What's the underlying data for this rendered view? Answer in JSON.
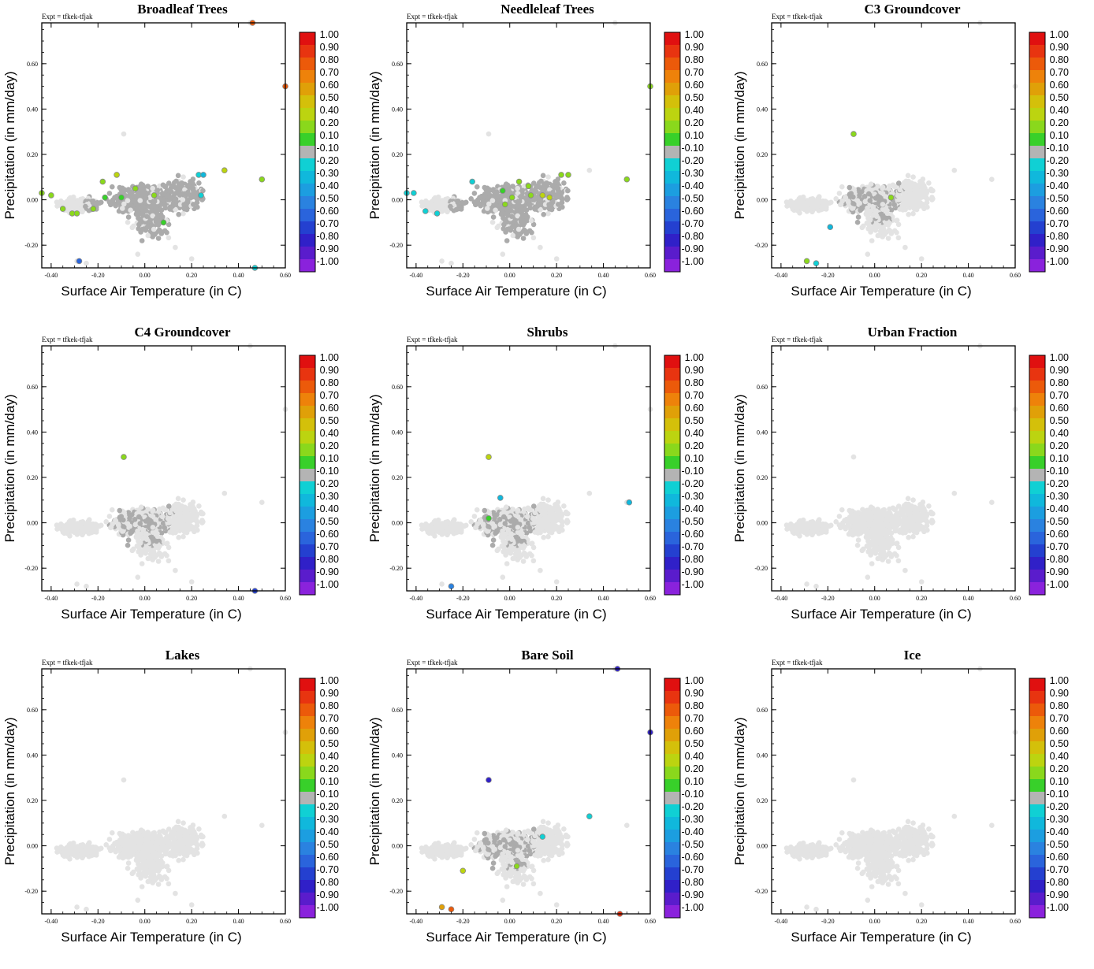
{
  "figure": {
    "expt_label": "Expt = tfkek-tfjak",
    "xlabel": "Surface Air Temperature (in C)",
    "ylabel": "Precipitation (in mm/day)",
    "xticks": [
      "-0.40",
      "-0.20",
      "0.00",
      "0.20",
      "0.40",
      "0.60"
    ],
    "yticks": [
      "-0.20",
      "0.00",
      "0.20",
      "0.40",
      "0.60"
    ],
    "colorbar_labels": [
      "1.00",
      "0.90",
      "0.80",
      "0.70",
      "0.60",
      "0.50",
      "0.40",
      "0.20",
      "0.10",
      "-0.10",
      "-0.20",
      "-0.30",
      "-0.40",
      "-0.50",
      "-0.60",
      "-0.70",
      "-0.80",
      "-0.90",
      "-1.00"
    ],
    "colorbar_colors": [
      "#e01010",
      "#e83410",
      "#ec5a0a",
      "#ee820a",
      "#e0a008",
      "#d4c00a",
      "#bcd410",
      "#8ad81c",
      "#38d02a",
      "#b4b4b4",
      "#10d0d4",
      "#10b8dc",
      "#1c9ee0",
      "#2a82e0",
      "#2a64dc",
      "#2440d0",
      "#3020c8",
      "#5a1ccc",
      "#8a22dc"
    ]
  },
  "chart_data": [
    {
      "type": "scatter",
      "title": "Broadleaf Trees",
      "xlabel": "Surface Air Temperature (in C)",
      "ylabel": "Precipitation (in mm/day)",
      "xlim": [
        -0.44,
        0.6
      ],
      "ylim": [
        -0.3,
        0.78
      ],
      "grey_level": "medium",
      "highlighted_points": [
        {
          "x": 0.46,
          "y": 0.78,
          "value": 0.8
        },
        {
          "x": 0.6,
          "y": 0.5,
          "value": 0.8
        },
        {
          "x": 0.34,
          "y": 0.13,
          "value": 0.4
        },
        {
          "x": 0.5,
          "y": 0.09,
          "value": 0.3
        },
        {
          "x": -0.12,
          "y": 0.11,
          "value": 0.4
        },
        {
          "x": -0.18,
          "y": 0.08,
          "value": 0.2
        },
        {
          "x": -0.44,
          "y": 0.03,
          "value": 0.2
        },
        {
          "x": -0.4,
          "y": 0.02,
          "value": 0.3
        },
        {
          "x": -0.35,
          "y": -0.04,
          "value": 0.2
        },
        {
          "x": -0.31,
          "y": -0.06,
          "value": 0.2
        },
        {
          "x": -0.29,
          "y": -0.06,
          "value": 0.2
        },
        {
          "x": -0.22,
          "y": -0.04,
          "value": 0.2
        },
        {
          "x": -0.17,
          "y": 0.01,
          "value": 0.1
        },
        {
          "x": -0.1,
          "y": 0.01,
          "value": 0.1
        },
        {
          "x": -0.04,
          "y": 0.05,
          "value": 0.2
        },
        {
          "x": 0.04,
          "y": 0.02,
          "value": 0.2
        },
        {
          "x": 0.08,
          "y": -0.1,
          "value": 0.1
        },
        {
          "x": 0.23,
          "y": 0.11,
          "value": -0.2
        },
        {
          "x": 0.25,
          "y": 0.11,
          "value": -0.3
        },
        {
          "x": 0.24,
          "y": 0.02,
          "value": -0.2
        },
        {
          "x": -0.28,
          "y": -0.27,
          "value": -0.6
        },
        {
          "x": 0.47,
          "y": -0.3,
          "value": -0.2
        }
      ]
    },
    {
      "type": "scatter",
      "title": "Needleleaf Trees",
      "xlabel": "Surface Air Temperature (in C)",
      "ylabel": "Precipitation (in mm/day)",
      "xlim": [
        -0.44,
        0.6
      ],
      "ylim": [
        -0.3,
        0.78
      ],
      "grey_level": "medium",
      "highlighted_points": [
        {
          "x": 0.6,
          "y": 0.5,
          "value": 0.2
        },
        {
          "x": 0.5,
          "y": 0.09,
          "value": 0.2
        },
        {
          "x": -0.44,
          "y": 0.03,
          "value": -0.2
        },
        {
          "x": -0.41,
          "y": 0.03,
          "value": -0.2
        },
        {
          "x": -0.36,
          "y": -0.05,
          "value": -0.2
        },
        {
          "x": -0.31,
          "y": -0.06,
          "value": -0.2
        },
        {
          "x": -0.16,
          "y": 0.08,
          "value": -0.2
        },
        {
          "x": -0.03,
          "y": 0.04,
          "value": 0.1
        },
        {
          "x": -0.02,
          "y": -0.02,
          "value": 0.2
        },
        {
          "x": 0.01,
          "y": 0.01,
          "value": 0.2
        },
        {
          "x": 0.04,
          "y": 0.08,
          "value": 0.2
        },
        {
          "x": 0.08,
          "y": 0.06,
          "value": 0.2
        },
        {
          "x": 0.09,
          "y": 0.02,
          "value": 0.2
        },
        {
          "x": 0.14,
          "y": 0.02,
          "value": 0.4
        },
        {
          "x": 0.17,
          "y": 0.01,
          "value": 0.4
        },
        {
          "x": 0.22,
          "y": 0.11,
          "value": 0.2
        },
        {
          "x": 0.25,
          "y": 0.11,
          "value": 0.2
        }
      ]
    },
    {
      "type": "scatter",
      "title": "C3 Groundcover",
      "xlabel": "Surface Air Temperature (in C)",
      "ylabel": "Precipitation (in mm/day)",
      "xlim": [
        -0.44,
        0.6
      ],
      "ylim": [
        -0.3,
        0.78
      ],
      "grey_level": "light",
      "highlighted_points": [
        {
          "x": -0.09,
          "y": 0.29,
          "value": 0.2
        },
        {
          "x": 0.07,
          "y": 0.01,
          "value": 0.2
        },
        {
          "x": -0.19,
          "y": -0.12,
          "value": -0.3
        },
        {
          "x": -0.29,
          "y": -0.27,
          "value": 0.2
        },
        {
          "x": -0.25,
          "y": -0.28,
          "value": -0.2
        }
      ]
    },
    {
      "type": "scatter",
      "title": "C4 Groundcover",
      "xlabel": "Surface Air Temperature (in C)",
      "ylabel": "Precipitation (in mm/day)",
      "xlim": [
        -0.44,
        0.6
      ],
      "ylim": [
        -0.3,
        0.78
      ],
      "grey_level": "light",
      "highlighted_points": [
        {
          "x": -0.09,
          "y": 0.29,
          "value": 0.2
        },
        {
          "x": 0.47,
          "y": -0.3,
          "value": -0.7
        }
      ]
    },
    {
      "type": "scatter",
      "title": "Shrubs",
      "xlabel": "Surface Air Temperature (in C)",
      "ylabel": "Precipitation (in mm/day)",
      "xlim": [
        -0.44,
        0.6
      ],
      "ylim": [
        -0.3,
        0.78
      ],
      "grey_level": "light",
      "highlighted_points": [
        {
          "x": -0.09,
          "y": 0.29,
          "value": 0.4
        },
        {
          "x": -0.04,
          "y": 0.11,
          "value": -0.3
        },
        {
          "x": -0.09,
          "y": 0.02,
          "value": 0.1
        },
        {
          "x": 0.51,
          "y": 0.09,
          "value": -0.3
        },
        {
          "x": -0.25,
          "y": -0.28,
          "value": -0.5
        }
      ]
    },
    {
      "type": "scatter",
      "title": "Urban Fraction",
      "xlabel": "Surface Air Temperature (in C)",
      "ylabel": "Precipitation (in mm/day)",
      "xlim": [
        -0.44,
        0.6
      ],
      "ylim": [
        -0.3,
        0.78
      ],
      "grey_level": "none",
      "highlighted_points": []
    },
    {
      "type": "scatter",
      "title": "Lakes",
      "xlabel": "Surface Air Temperature (in C)",
      "ylabel": "Precipitation (in mm/day)",
      "xlim": [
        -0.44,
        0.6
      ],
      "ylim": [
        -0.3,
        0.78
      ],
      "grey_level": "none",
      "highlighted_points": []
    },
    {
      "type": "scatter",
      "title": "Bare Soil",
      "xlabel": "Surface Air Temperature (in C)",
      "ylabel": "Precipitation (in mm/day)",
      "xlim": [
        -0.44,
        0.6
      ],
      "ylim": [
        -0.3,
        0.78
      ],
      "grey_level": "light",
      "highlighted_points": [
        {
          "x": 0.46,
          "y": 0.78,
          "value": -0.8
        },
        {
          "x": 0.6,
          "y": 0.5,
          "value": -0.8
        },
        {
          "x": -0.09,
          "y": 0.29,
          "value": -0.8
        },
        {
          "x": 0.34,
          "y": 0.13,
          "value": -0.2
        },
        {
          "x": 0.14,
          "y": 0.04,
          "value": -0.2
        },
        {
          "x": 0.03,
          "y": -0.09,
          "value": 0.2
        },
        {
          "x": -0.2,
          "y": -0.11,
          "value": 0.4
        },
        {
          "x": -0.29,
          "y": -0.27,
          "value": 0.6
        },
        {
          "x": -0.25,
          "y": -0.28,
          "value": 0.8
        },
        {
          "x": 0.47,
          "y": -0.3,
          "value": 0.9
        }
      ]
    },
    {
      "type": "scatter",
      "title": "Ice",
      "xlabel": "Surface Air Temperature (in C)",
      "ylabel": "Precipitation (in mm/day)",
      "xlim": [
        -0.44,
        0.6
      ],
      "ylim": [
        -0.3,
        0.78
      ],
      "grey_level": "none",
      "highlighted_points": []
    }
  ]
}
